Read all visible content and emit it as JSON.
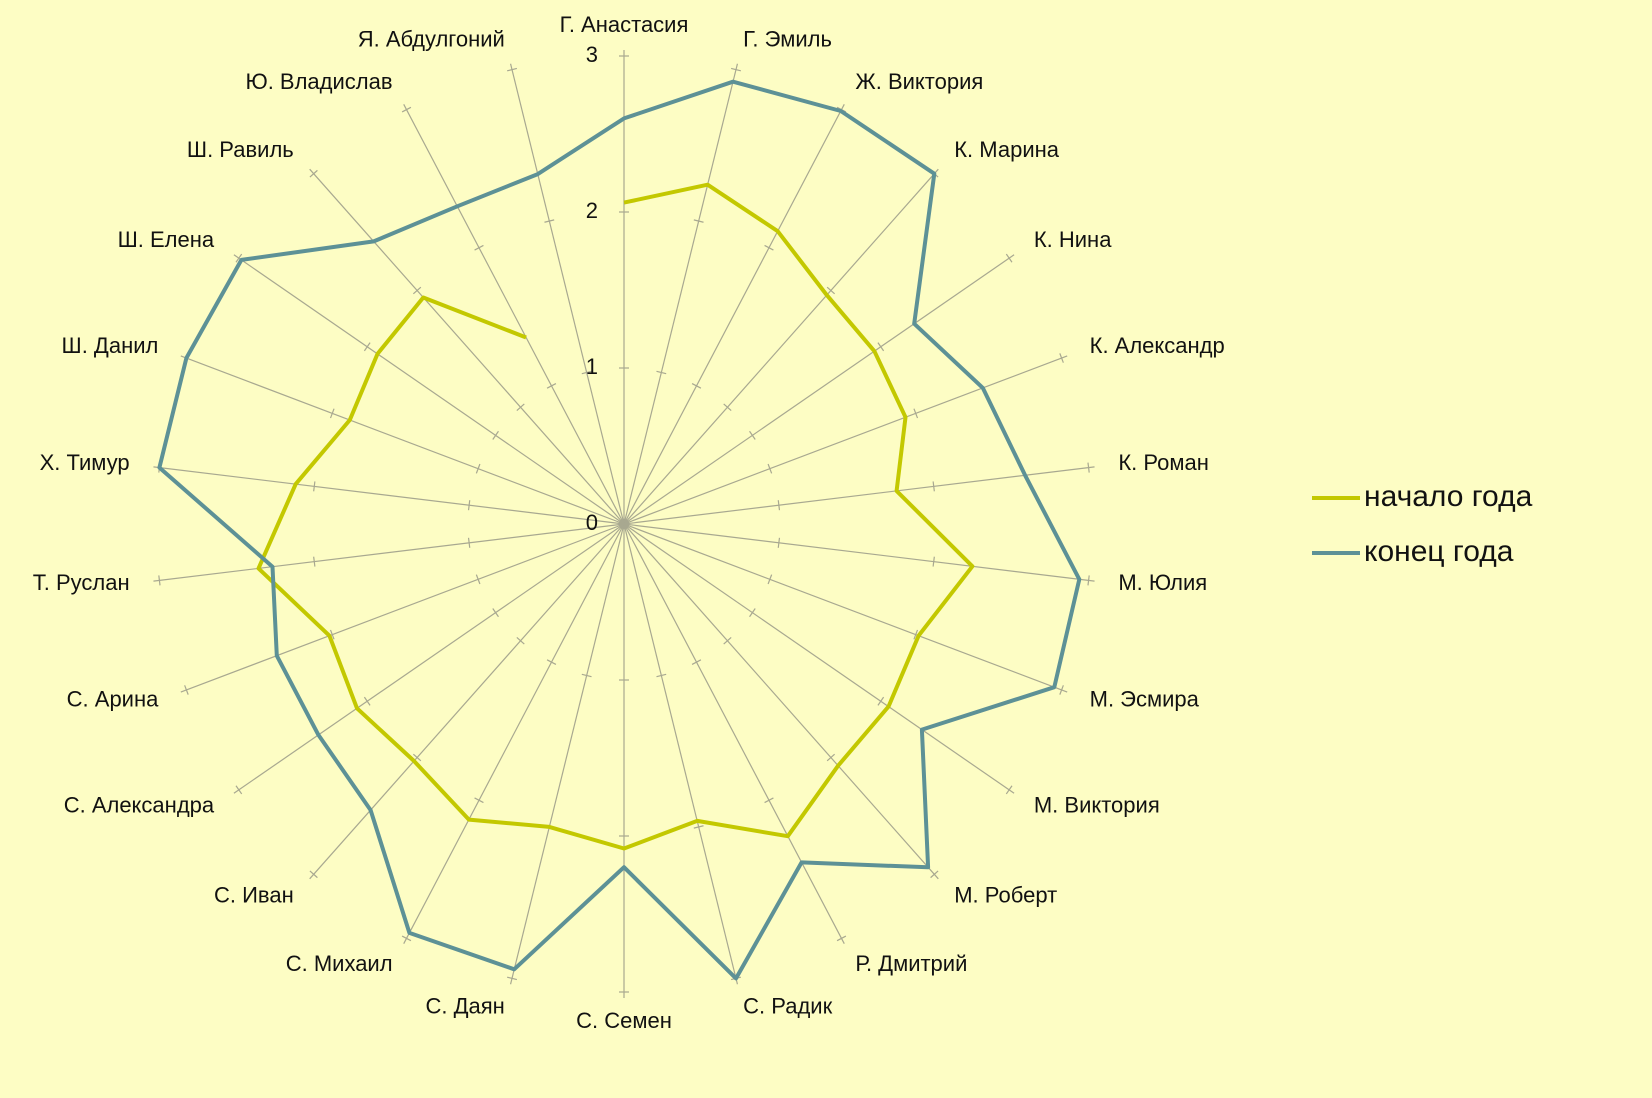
{
  "chart_data": {
    "type": "radar",
    "categories": [
      "Г. Анастасия",
      "Г. Эмиль",
      "Ж. Виктория",
      "К. Марина",
      "К. Нина",
      "К. Александр",
      "К. Роман",
      "М. Юлия",
      "М. Эсмира",
      "М. Виктория",
      "М. Роберт",
      "Р. Дмитрий",
      "С. Радик",
      "С. Семен",
      "С. Даян",
      "С. Михаил",
      "С. Иван",
      "С. Александра",
      "С. Арина",
      "Т. Руслан",
      "Х. Тимур",
      "Ш. Данил",
      "Ш. Елена",
      "Ш. Равиль",
      "Ю. Владислав",
      "Я. Абдулгоний"
    ],
    "series": [
      {
        "name": "начало года",
        "color": "#c3c800",
        "values": [
          2.06,
          2.24,
          2.12,
          1.96,
          1.95,
          1.93,
          1.76,
          2.25,
          2.02,
          2.06,
          2.07,
          2.26,
          1.96,
          2.08,
          2.0,
          2.14,
          2.03,
          2.08,
          2.02,
          2.36,
          2.12,
          1.88,
          1.92,
          1.94,
          1.35,
          null
        ]
      },
      {
        "name": "конец года",
        "color": "#5d9196",
        "values": [
          2.6,
          2.92,
          2.99,
          3.0,
          2.26,
          2.46,
          2.59,
          2.94,
          2.95,
          2.32,
          2.94,
          2.45,
          3.0,
          2.2,
          2.94,
          2.96,
          2.45,
          2.38,
          2.38,
          2.27,
          3.0,
          3.0,
          2.98,
          2.42,
          2.3,
          2.31
        ]
      }
    ],
    "ylim": [
      0,
      3
    ],
    "yticks": [
      0,
      1,
      2,
      3
    ],
    "legend": "right"
  }
}
